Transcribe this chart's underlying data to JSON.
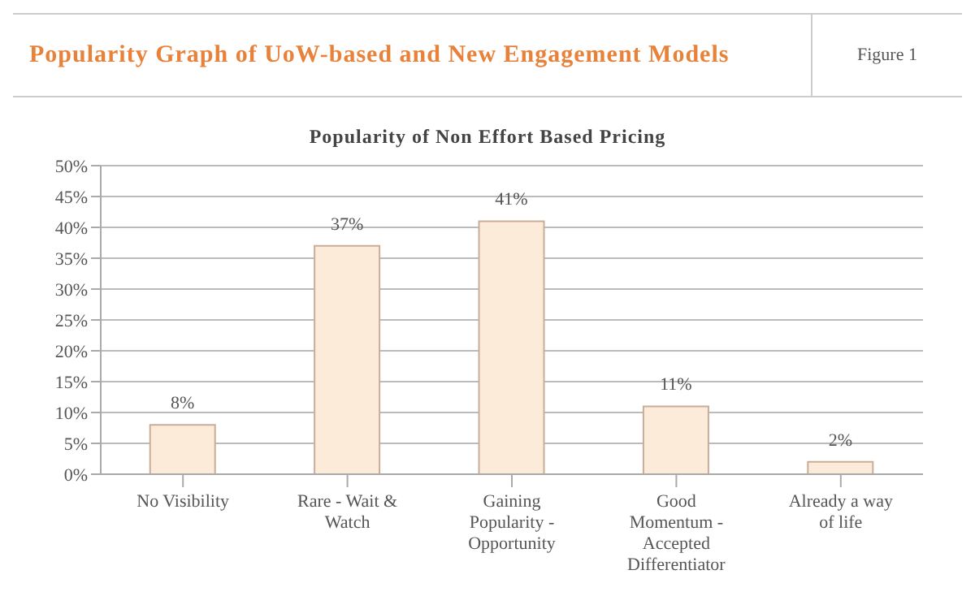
{
  "chart_data": {
    "type": "bar",
    "title": "Popularity Graph of UoW-based and New Engagement Models",
    "subtitle": "Popularity of Non Effort Based Pricing",
    "annotations": [
      "Figure 1"
    ],
    "categories": [
      "No Visibility",
      "Rare - Wait & Watch",
      "Gaining Popularity - Opportunity",
      "Good Momentum - Accepted Differentiator",
      "Already a way of life"
    ],
    "values": [
      8,
      37,
      41,
      11,
      2
    ],
    "value_labels": [
      "8%",
      "37%",
      "41%",
      "11%",
      "2%"
    ],
    "color": "#fdebd9",
    "ylim": [
      0,
      50
    ],
    "yticks": [
      {
        "value": 0,
        "label": "0%"
      },
      {
        "value": 5,
        "label": "5%"
      },
      {
        "value": 10,
        "label": "10%"
      },
      {
        "value": 15,
        "label": "15%"
      },
      {
        "value": 20,
        "label": "20%"
      },
      {
        "value": 25,
        "label": "25%"
      },
      {
        "value": 30,
        "label": "30%"
      },
      {
        "value": 35,
        "label": "35%"
      },
      {
        "value": 40,
        "label": "40%"
      },
      {
        "value": 45,
        "label": "45%"
      },
      {
        "value": 50,
        "label": "50%"
      }
    ],
    "grid": "y",
    "legend": false
  }
}
